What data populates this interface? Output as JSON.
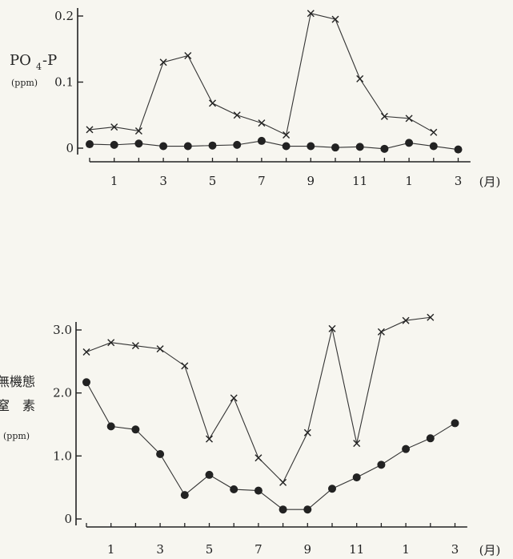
{
  "chart_data": [
    {
      "type": "line",
      "ylabel_main": "PO",
      "ylabel_sub": "4",
      "ylabel_rest": "-P",
      "ylabel_unit": "(ppm)",
      "ylim": [
        0,
        0.2
      ],
      "yticks": [
        "0",
        "0.1",
        "0.2"
      ],
      "xtick_labels": [
        "1",
        "3",
        "5",
        "7",
        "9",
        "11",
        "1",
        "3"
      ],
      "x_unit": "(月)",
      "series": [
        {
          "marker": "x",
          "values": [
            0.028,
            0.032,
            0.026,
            0.13,
            0.14,
            0.068,
            0.05,
            0.038,
            0.02,
            0.204,
            0.195,
            0.105,
            0.048,
            0.045,
            0.024
          ]
        },
        {
          "marker": "dot",
          "values": [
            0.006,
            0.005,
            0.007,
            0.003,
            0.003,
            0.004,
            0.005,
            0.011,
            0.003,
            0.003,
            0.001,
            0.002,
            -0.001,
            0.008,
            0.003,
            -0.002
          ]
        }
      ],
      "grid": false
    },
    {
      "type": "line",
      "ylabel_line1": "無機態",
      "ylabel_line2": "窒　素",
      "ylabel_unit": "(ppm)",
      "ylim": [
        0,
        3.0
      ],
      "yticks": [
        "0",
        "1.0",
        "2.0",
        "3.0"
      ],
      "xtick_labels": [
        "1",
        "3",
        "5",
        "7",
        "9",
        "11",
        "1",
        "3"
      ],
      "x_unit": "(月)",
      "series": [
        {
          "marker": "x",
          "values": [
            2.65,
            2.8,
            2.75,
            2.7,
            2.43,
            1.27,
            1.92,
            0.97,
            0.58,
            1.37,
            3.02,
            1.2,
            2.97,
            3.15,
            3.2
          ]
        },
        {
          "marker": "dot",
          "values": [
            2.17,
            1.47,
            1.42,
            1.03,
            0.38,
            0.7,
            0.47,
            0.45,
            0.15,
            0.15,
            0.48,
            0.66,
            0.86,
            1.11,
            1.28,
            1.52
          ]
        }
      ],
      "grid": false
    }
  ]
}
